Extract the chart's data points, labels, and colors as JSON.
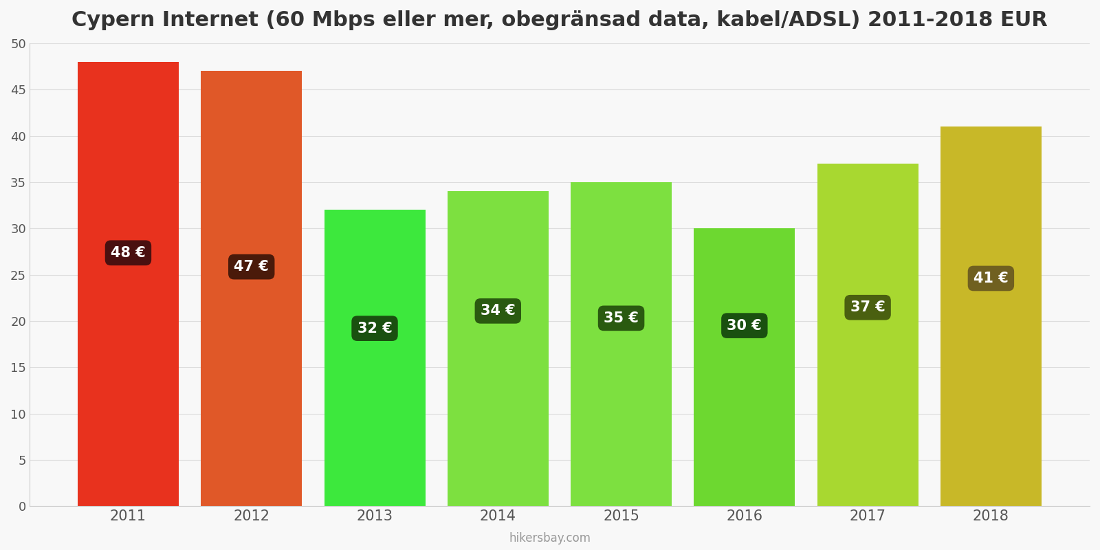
{
  "title": "Cypern Internet (60 Mbps eller mer, obegränsad data, kabel/ADSL) 2011-2018 EUR",
  "years": [
    2011,
    2012,
    2013,
    2014,
    2015,
    2016,
    2017,
    2018
  ],
  "values": [
    48,
    47,
    32,
    34,
    35,
    30,
    37,
    41
  ],
  "bar_colors": [
    "#e8321e",
    "#e05828",
    "#3de83d",
    "#7de040",
    "#7de040",
    "#6dd830",
    "#a8d830",
    "#c8b828"
  ],
  "label_box_colors": [
    "#4a1010",
    "#4a1a0a",
    "#1a5010",
    "#2a5a10",
    "#2a5a10",
    "#1a5010",
    "#4a6010",
    "#706020"
  ],
  "label_y_fractions": [
    0.57,
    0.55,
    0.6,
    0.62,
    0.58,
    0.65,
    0.58,
    0.6
  ],
  "ylim": [
    0,
    50
  ],
  "yticks": [
    0,
    5,
    10,
    15,
    20,
    25,
    30,
    35,
    40,
    45,
    50
  ],
  "bar_width": 0.82,
  "footer": "hikersbay.com",
  "title_fontsize": 22,
  "background_color": "#f8f8f8"
}
